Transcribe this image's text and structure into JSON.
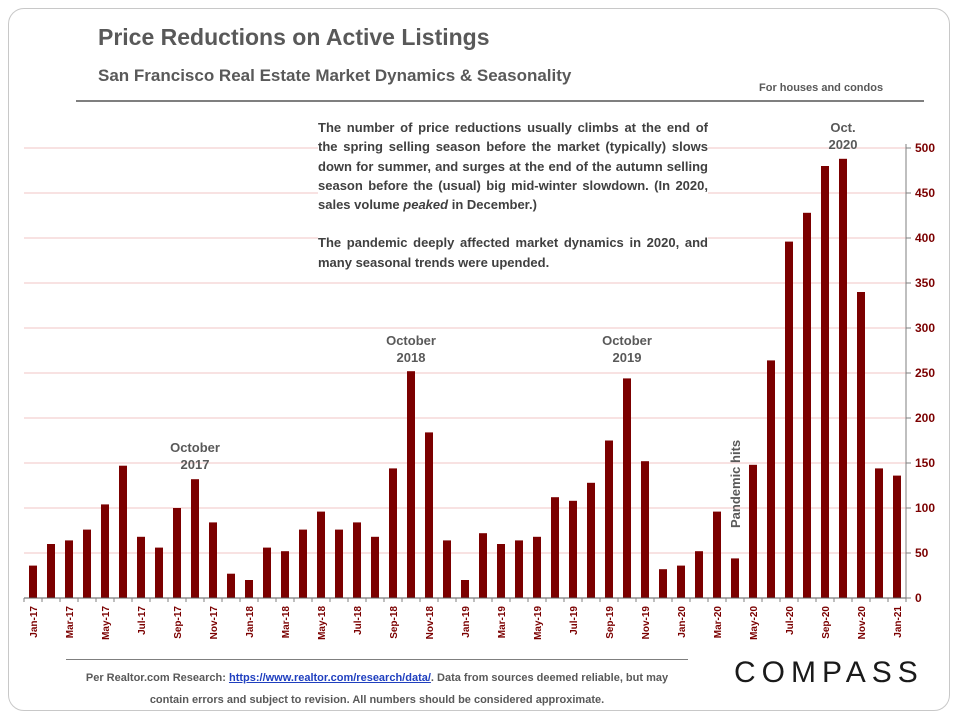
{
  "header": {
    "title": "Price Reductions on Active Listings",
    "subtitle": "San Francisco  Real Estate  Market Dynamics  &  Seasonality",
    "note": "For houses and condos"
  },
  "annotation": {
    "para1_a": "The number of price reductions usually climbs at the end of the spring selling season before the market (typically) slows down for summer, and surges at the end of the autumn selling season before the (usual) big mid-winter slowdown. (In 2020, sales volume ",
    "para1_em": "peaked",
    "para1_b": " in December.)",
    "para2": "The pandemic deeply affected market dynamics in 2020, and many seasonal trends were upended."
  },
  "callouts": {
    "oct2017": [
      "October",
      "2017"
    ],
    "oct2018": [
      "October",
      "2018"
    ],
    "oct2019": [
      "October",
      "2019"
    ],
    "oct2020": [
      "Oct.",
      "2020"
    ],
    "pandemic": "Pandemic hits"
  },
  "footer": {
    "prefix": "Per Realtor.com  Research:  ",
    "link": "https://www.realtor.com/research/data/",
    "suffix": ". Data from sources deemed reliable, but may contain errors and subject to revision. All numbers should be considered approximate."
  },
  "logo": "COMPASS",
  "colors": {
    "bar": "#7b0000",
    "grid": "#f2c4c4",
    "axis_text": "#7b0000"
  },
  "chart_data": {
    "type": "bar",
    "title": "Price Reductions on Active Listings",
    "xlabel": "",
    "ylabel": "",
    "ylim": [
      0,
      500
    ],
    "yticks": [
      0,
      50,
      100,
      150,
      200,
      250,
      300,
      350,
      400,
      450,
      500
    ],
    "y_axis_side": "right",
    "categories": [
      "Jan-17",
      "Feb-17",
      "Mar-17",
      "Apr-17",
      "May-17",
      "Jun-17",
      "Jul-17",
      "Aug-17",
      "Sep-17",
      "Oct-17",
      "Nov-17",
      "Dec-17",
      "Jan-18",
      "Feb-18",
      "Mar-18",
      "Apr-18",
      "May-18",
      "Jun-18",
      "Jul-18",
      "Aug-18",
      "Sep-18",
      "Oct-18",
      "Nov-18",
      "Dec-18",
      "Jan-19",
      "Feb-19",
      "Mar-19",
      "Apr-19",
      "May-19",
      "Jun-19",
      "Jul-19",
      "Aug-19",
      "Sep-19",
      "Oct-19",
      "Nov-19",
      "Dec-19",
      "Jan-20",
      "Feb-20",
      "Mar-20",
      "Apr-20",
      "May-20",
      "Jun-20",
      "Jul-20",
      "Aug-20",
      "Sep-20",
      "Oct-20",
      "Nov-20",
      "Dec-20",
      "Jan-21"
    ],
    "tick_labels": [
      "Jan-17",
      "Mar-17",
      "May-17",
      "Jul-17",
      "Sep-17",
      "Nov-17",
      "Jan-18",
      "Mar-18",
      "May-18",
      "Jul-18",
      "Sep-18",
      "Nov-18",
      "Jan-19",
      "Mar-19",
      "May-19",
      "Jul-19",
      "Sep-19",
      "Nov-19",
      "Jan-20",
      "Mar-20",
      "May-20",
      "Jul-20",
      "Sep-20",
      "Nov-20",
      "Jan-21"
    ],
    "values": [
      36,
      60,
      64,
      76,
      104,
      147,
      68,
      56,
      100,
      132,
      84,
      27,
      20,
      56,
      52,
      76,
      96,
      76,
      84,
      68,
      144,
      252,
      184,
      64,
      20,
      72,
      60,
      64,
      68,
      112,
      108,
      128,
      175,
      244,
      152,
      32,
      36,
      52,
      96,
      44,
      148,
      264,
      396,
      428,
      480,
      488,
      340,
      144,
      136
    ]
  }
}
